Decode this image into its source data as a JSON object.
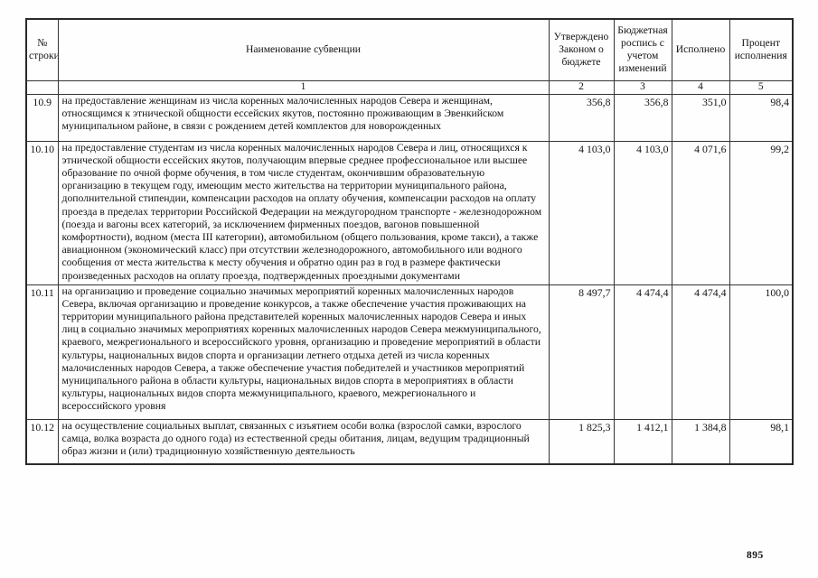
{
  "document": {
    "page_number": "895",
    "table": {
      "headers": [
        "№ строки",
        "Наименование субвенции",
        "Утверждено Законом о бюджете",
        "Бюджетная роспись с учетом изменений",
        "Исполнено",
        "Процент исполнения"
      ],
      "column_numbers": [
        "",
        "1",
        "2",
        "3",
        "4",
        "5"
      ],
      "rows": [
        {
          "row_no": "10.9",
          "subvention_name": "на предоставление женщинам из числа коренных малочисленных народов Севера и женщинам, относящимся к этнической общности ессейских якутов, постоянно проживающим в Эвенкийском муниципальном районе, в связи с рождением детей комплектов для новорожденных",
          "approved_by_budget_law": "356,8",
          "budget_rospis": "356,8",
          "executed": "351,0",
          "execution_percent": "98,4"
        },
        {
          "row_no": "10.10",
          "subvention_name": "на предоставление студентам из числа коренных малочисленных народов Севера и лиц, относящихся к этнической общности ессейских якутов, получающим впервые среднее профессиональное или высшее образование по очной форме обучения, в том числе студентам, окончившим образовательную организацию в текущем году, имеющим место жительства на территории муниципального района, дополнительной стипендии, компенсации расходов на оплату обучения, компенсации расходов на оплату проезда в пределах территории Российской Федерации на междугородном транспорте - железнодорожном (поезда и вагоны всех категорий, за исключением фирменных поездов, вагонов повышенной комфортности), водном (места III категории), автомобильном (общего пользования, кроме такси), а также авиационном (экономический класс) при отсутствии железнодорожного, автомобильного или водного сообщения от места жительства к месту обучения и обратно один раз в год в размере фактически произведенных расходов на оплату проезда, подтвержденных проездными документами",
          "approved_by_budget_law": "4 103,0",
          "budget_rospis": "4 103,0",
          "executed": "4 071,6",
          "execution_percent": "99,2"
        },
        {
          "row_no": "10.11",
          "subvention_name": "на организацию и проведение социально значимых мероприятий коренных малочисленных народов Севера, включая организацию и проведение конкурсов, а также обеспечение участия проживающих на территории муниципального района представителей коренных малочисленных народов Севера и иных лиц в социально значимых мероприятиях коренных малочисленных народов Севера межмуниципального, краевого, межрегионального и всероссийского уровня, организацию и проведение мероприятий в области культуры, национальных видов спорта и организации летнего отдыха детей из числа коренных малочисленных народов Севера, а также обеспечение участия победителей и участников мероприятий муниципального района в области культуры, национальных видов спорта в мероприятиях в области культуры, национальных видов спорта межмуниципального, краевого, межрегионального и всероссийского уровня",
          "approved_by_budget_law": "8 497,7",
          "budget_rospis": "4 474,4",
          "executed": "4 474,4",
          "execution_percent": "100,0"
        },
        {
          "row_no": "10.12",
          "subvention_name": "на осуществление социальных выплат, связанных с изъятием особи волка (взрослой самки, взрослого самца, волка возраста до одного года) из естественной среды обитания, лицам, ведущим традиционный образ жизни и (или) традиционную хозяйственную деятельность",
          "approved_by_budget_law": "1 825,3",
          "budget_rospis": "1 412,1",
          "executed": "1 384,8",
          "execution_percent": "98,1"
        }
      ]
    }
  }
}
